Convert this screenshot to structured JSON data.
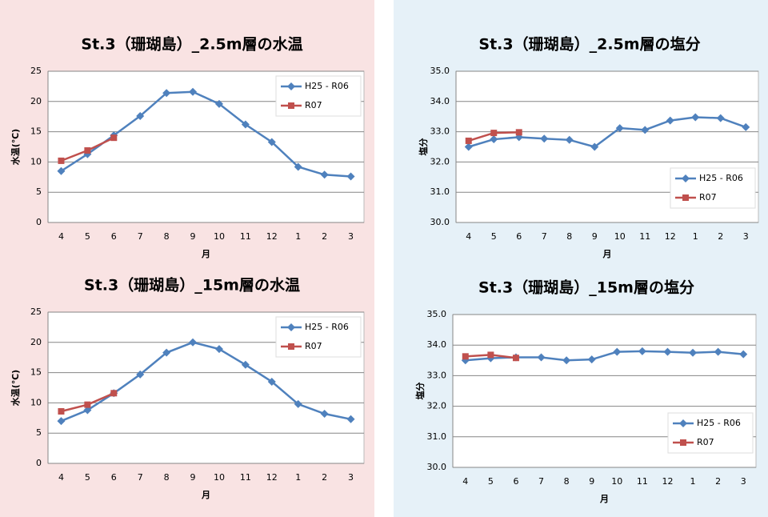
{
  "chart_data": [
    {
      "type": "line",
      "title": "St.3（珊瑚島）_2.5m層の水温",
      "x_label": "月",
      "y_label": "水温(℃)",
      "categories": [
        "4",
        "5",
        "6",
        "7",
        "8",
        "9",
        "10",
        "11",
        "12",
        "1",
        "2",
        "3"
      ],
      "series": [
        {
          "name": "H25 - R06",
          "color": "#4f81bd",
          "marker": "diamond",
          "values": [
            8.5,
            11.3,
            14.4,
            17.6,
            21.4,
            21.6,
            19.6,
            16.2,
            13.3,
            9.2,
            7.9,
            7.6
          ]
        },
        {
          "name": "R07",
          "color": "#c0504d",
          "marker": "square",
          "values": [
            10.2,
            11.9,
            14.0,
            null,
            null,
            null,
            null,
            null,
            null,
            null,
            null,
            null
          ]
        }
      ],
      "ylim": [
        0,
        25
      ],
      "yticks": [
        0,
        5,
        10,
        15,
        20,
        25
      ],
      "grid": true,
      "legend": "top-right"
    },
    {
      "type": "line",
      "title": "St.3（珊瑚島）_2.5m層の塩分",
      "x_label": "月",
      "y_label": "塩分",
      "categories": [
        "4",
        "5",
        "6",
        "7",
        "8",
        "9",
        "10",
        "11",
        "12",
        "1",
        "2",
        "3"
      ],
      "series": [
        {
          "name": "H25 - R06",
          "color": "#4f81bd",
          "marker": "diamond",
          "values": [
            32.5,
            32.75,
            32.82,
            32.77,
            32.73,
            32.5,
            33.12,
            33.06,
            33.37,
            33.48,
            33.45,
            33.15
          ]
        },
        {
          "name": "R07",
          "color": "#c0504d",
          "marker": "square",
          "values": [
            32.7,
            32.96,
            32.98,
            null,
            null,
            null,
            null,
            null,
            null,
            null,
            null,
            null
          ]
        }
      ],
      "ylim": [
        30,
        35
      ],
      "yticks": [
        {
          "value": 30,
          "label": "30.0"
        },
        {
          "value": 31,
          "label": "31.0"
        },
        {
          "value": 32,
          "label": "32.0"
        },
        {
          "value": 33,
          "label": "33.0"
        },
        {
          "value": 34,
          "label": "34.0"
        },
        {
          "value": 35,
          "label": "35.0"
        }
      ],
      "grid": true,
      "legend": "bottom-right"
    },
    {
      "type": "line",
      "title": "St.3（珊瑚島）_15m層の水温",
      "x_label": "月",
      "y_label": "水温(℃)",
      "categories": [
        "4",
        "5",
        "6",
        "7",
        "8",
        "9",
        "10",
        "11",
        "12",
        "1",
        "2",
        "3"
      ],
      "series": [
        {
          "name": "H25 - R06",
          "color": "#4f81bd",
          "marker": "diamond",
          "values": [
            7.0,
            8.8,
            11.6,
            14.7,
            18.3,
            20.0,
            18.9,
            16.3,
            13.5,
            9.8,
            8.2,
            7.3
          ]
        },
        {
          "name": "R07",
          "color": "#c0504d",
          "marker": "square",
          "values": [
            8.6,
            9.7,
            11.6,
            null,
            null,
            null,
            null,
            null,
            null,
            null,
            null,
            null
          ]
        }
      ],
      "ylim": [
        0,
        25
      ],
      "yticks": [
        0,
        5,
        10,
        15,
        20,
        25
      ],
      "grid": true,
      "legend": "top-right"
    },
    {
      "type": "line",
      "title": "St.3（珊瑚島）_15m層の塩分",
      "x_label": "月",
      "y_label": "塩分",
      "categories": [
        "4",
        "5",
        "6",
        "7",
        "8",
        "9",
        "10",
        "11",
        "12",
        "1",
        "2",
        "3"
      ],
      "series": [
        {
          "name": "H25 - R06",
          "color": "#4f81bd",
          "marker": "diamond",
          "values": [
            33.5,
            33.57,
            33.6,
            33.6,
            33.5,
            33.53,
            33.78,
            33.8,
            33.78,
            33.75,
            33.78,
            33.7
          ]
        },
        {
          "name": "R07",
          "color": "#c0504d",
          "marker": "square",
          "values": [
            33.63,
            33.68,
            33.58,
            null,
            null,
            null,
            null,
            null,
            null,
            null,
            null,
            null
          ]
        }
      ],
      "ylim": [
        30,
        35
      ],
      "yticks": [
        {
          "value": 30,
          "label": "30.0"
        },
        {
          "value": 31,
          "label": "31.0"
        },
        {
          "value": 32,
          "label": "32.0"
        },
        {
          "value": 33,
          "label": "33.0"
        },
        {
          "value": 34,
          "label": "34.0"
        },
        {
          "value": 35,
          "label": "35.0"
        }
      ],
      "grid": true,
      "legend": "bottom-right"
    }
  ]
}
